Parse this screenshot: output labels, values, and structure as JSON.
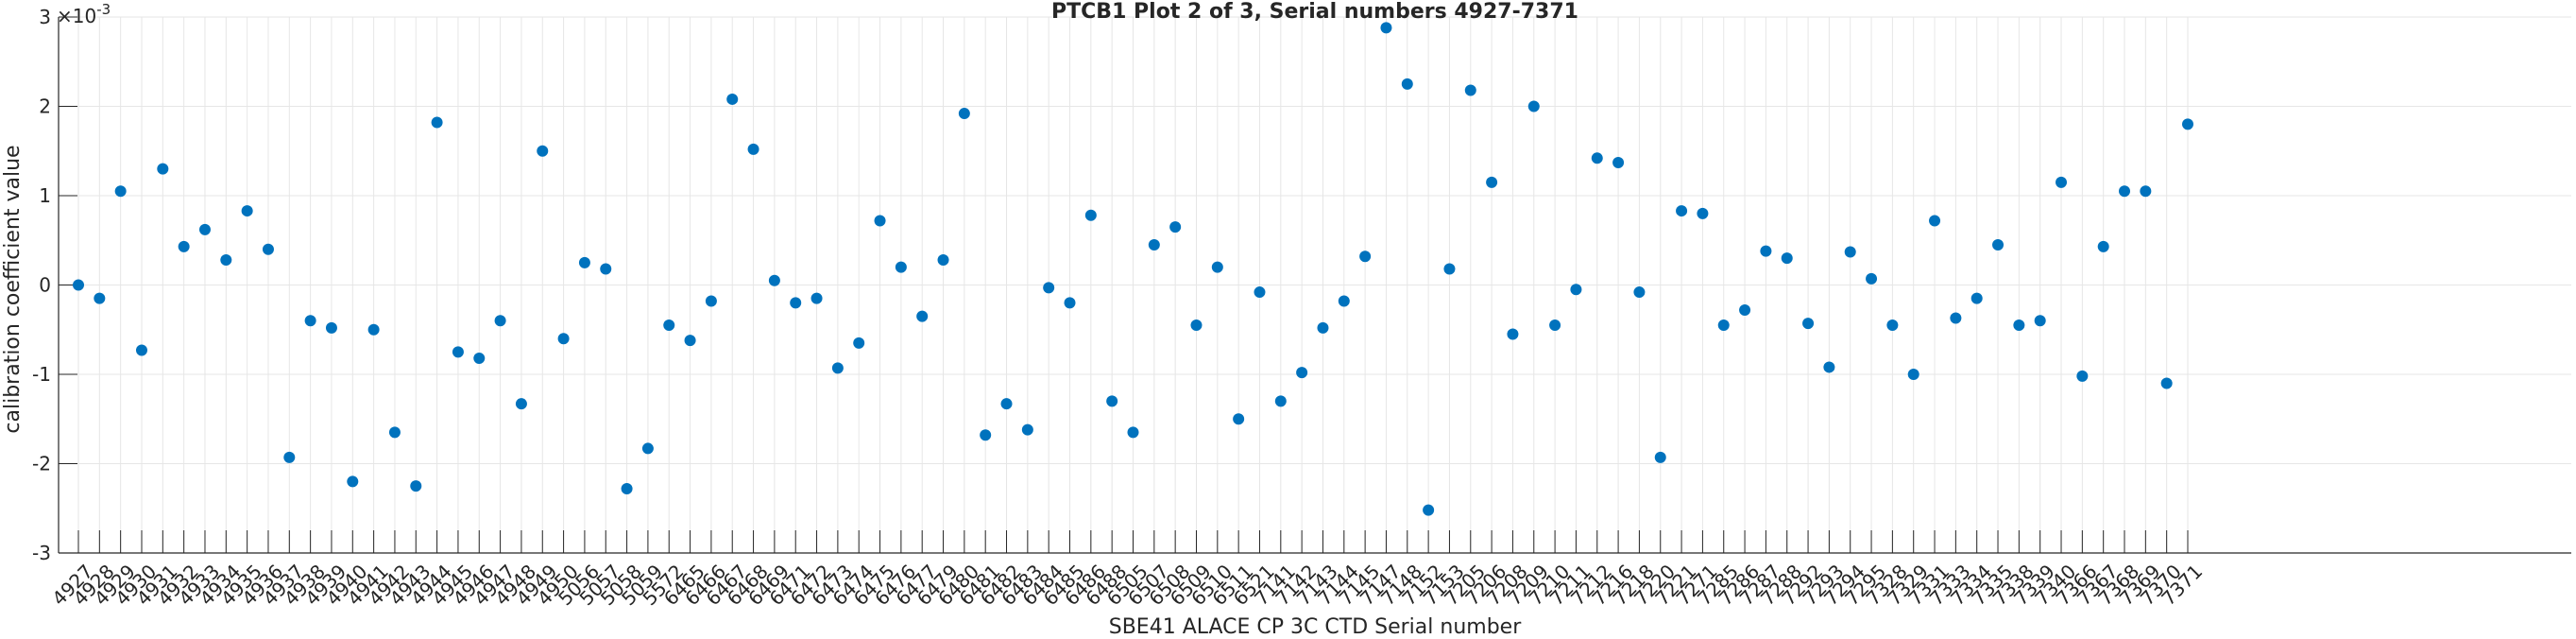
{
  "chart_data": {
    "type": "scatter",
    "title": "PTCB1 Plot 2 of 3, Serial numbers 4927-7371",
    "xlabel": "SBE41 ALACE CP 3C CTD Serial number",
    "ylabel": "calibration coefficient value",
    "y_exponent_label": "×10",
    "y_exponent_value": "-3",
    "ylim": [
      -3,
      3
    ],
    "yticks": [
      "-3",
      "-2",
      "-1",
      "0",
      "1",
      "2",
      "3"
    ],
    "grid": true,
    "marker_color": "#0072BD",
    "categories": [
      "4927",
      "4928",
      "4929",
      "4930",
      "4931",
      "4932",
      "4933",
      "4934",
      "4935",
      "4936",
      "4937",
      "4938",
      "4939",
      "4940",
      "4941",
      "4942",
      "4943",
      "4944",
      "4945",
      "4946",
      "4947",
      "4948",
      "4949",
      "4950",
      "5056",
      "5057",
      "5058",
      "5059",
      "5572",
      "6465",
      "6466",
      "6467",
      "6468",
      "6469",
      "6471",
      "6472",
      "6473",
      "6474",
      "6475",
      "6476",
      "6477",
      "6479",
      "6480",
      "6481",
      "6482",
      "6483",
      "6484",
      "6485",
      "6486",
      "6488",
      "6505",
      "6507",
      "6508",
      "6509",
      "6510",
      "6511",
      "6521",
      "7141",
      "7142",
      "7143",
      "7144",
      "7145",
      "7147",
      "7148",
      "7152",
      "7153",
      "7205",
      "7206",
      "7208",
      "7209",
      "7210",
      "7211",
      "7212",
      "7216",
      "7218",
      "7220",
      "7221",
      "7271",
      "7285",
      "7286",
      "7287",
      "7288",
      "7292",
      "7293",
      "7294",
      "7295",
      "7328",
      "7329",
      "7331",
      "7333",
      "7334",
      "7335",
      "7338",
      "7339",
      "7340",
      "7366",
      "7367",
      "7368",
      "7369",
      "7370",
      "7371"
    ],
    "values": [
      0.0,
      -0.15,
      1.05,
      -0.73,
      1.3,
      0.43,
      0.62,
      0.28,
      0.83,
      0.4,
      -1.93,
      -0.4,
      -0.48,
      -2.2,
      -0.5,
      -1.65,
      -2.25,
      1.82,
      -0.75,
      -0.82,
      -0.4,
      -1.33,
      1.5,
      -0.6,
      0.25,
      0.18,
      -2.28,
      -1.83,
      -0.45,
      -0.62,
      -0.18,
      2.08,
      1.52,
      0.05,
      -0.2,
      -0.15,
      -0.93,
      -0.65,
      0.72,
      0.2,
      -0.35,
      0.28,
      1.92,
      -1.68,
      -1.33,
      -1.62,
      -0.03,
      -0.2,
      0.78,
      -1.3,
      -1.65,
      0.45,
      0.65,
      -0.45,
      0.2,
      -1.5,
      -0.08,
      -1.3,
      -0.98,
      -0.48,
      -0.18,
      0.32,
      2.88,
      2.25,
      -2.52,
      0.18,
      2.18,
      1.15,
      -0.55,
      2.0,
      -0.45,
      -0.05,
      1.42,
      1.37,
      -0.08,
      -1.93,
      0.83,
      0.8,
      -0.45,
      -0.28,
      0.38,
      0.3,
      -0.43,
      -0.92,
      0.37,
      0.07,
      -0.45,
      -1.0,
      0.72,
      -0.37,
      -0.15,
      0.45,
      -0.45,
      -0.4,
      1.15,
      -1.02,
      0.43,
      1.05,
      1.05,
      -1.1,
      1.8
    ]
  }
}
